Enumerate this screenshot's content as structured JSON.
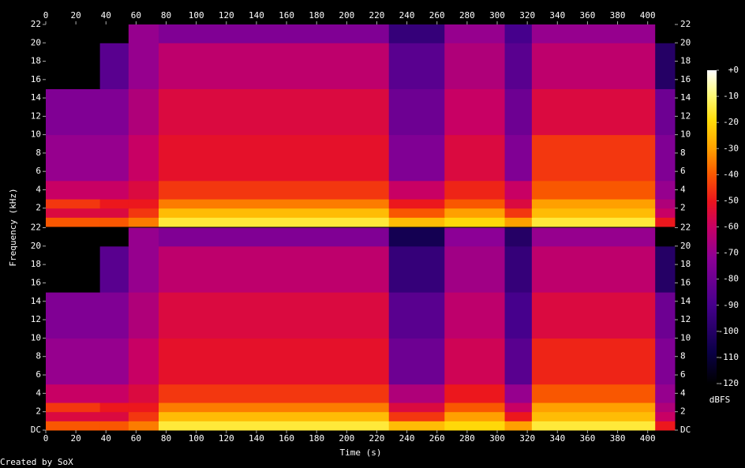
{
  "chart_data": {
    "type": "heatmap",
    "xlabel": "Time (s)",
    "ylabel": "Frequency (kHz)",
    "xlim": [
      0,
      418
    ],
    "xticks": [
      0,
      20,
      40,
      60,
      80,
      100,
      120,
      140,
      160,
      180,
      200,
      220,
      240,
      260,
      280,
      300,
      320,
      340,
      360,
      380,
      400
    ],
    "ylim": [
      0,
      22
    ],
    "x_bins": [
      0,
      36,
      55,
      75,
      228,
      265,
      305,
      323,
      405,
      418
    ],
    "y_bins": [
      0,
      1,
      2,
      3,
      5,
      10,
      15,
      20,
      22
    ],
    "channels": [
      {
        "yticks": [
          2,
          4,
          6,
          8,
          10,
          12,
          14,
          16,
          18,
          20,
          22
        ],
        "values": [
          [
            -40,
            -40,
            -35,
            -15,
            -25,
            -20,
            -30,
            -15,
            -50
          ],
          [
            -55,
            -55,
            -45,
            -25,
            -40,
            -30,
            -45,
            -25,
            -60
          ],
          [
            -45,
            -50,
            -50,
            -35,
            -50,
            -40,
            -55,
            -30,
            -65
          ],
          [
            -60,
            -60,
            -55,
            -45,
            -60,
            -48,
            -60,
            -40,
            -70
          ],
          [
            -70,
            -70,
            -60,
            -52,
            -75,
            -55,
            -75,
            -45,
            -75
          ],
          [
            -75,
            -75,
            -65,
            -55,
            -80,
            -60,
            -80,
            -55,
            -80
          ],
          [
            -120,
            -85,
            -70,
            -62,
            -85,
            -65,
            -85,
            -62,
            -100
          ],
          [
            -120,
            -120,
            -70,
            -75,
            -95,
            -70,
            -90,
            -70,
            -120
          ]
        ]
      },
      {
        "yticks": [
          {
            "value": 0,
            "label": "DC"
          },
          2,
          4,
          6,
          8,
          10,
          12,
          14,
          16,
          18,
          20,
          22
        ],
        "values": [
          [
            -40,
            -40,
            -35,
            -15,
            -25,
            -20,
            -30,
            -15,
            -50
          ],
          [
            -55,
            -55,
            -45,
            -25,
            -45,
            -30,
            -50,
            -25,
            -60
          ],
          [
            -45,
            -50,
            -50,
            -35,
            -55,
            -40,
            -60,
            -30,
            -65
          ],
          [
            -60,
            -60,
            -55,
            -45,
            -65,
            -50,
            -70,
            -40,
            -70
          ],
          [
            -70,
            -70,
            -60,
            -52,
            -80,
            -58,
            -85,
            -48,
            -75
          ],
          [
            -75,
            -75,
            -65,
            -55,
            -85,
            -62,
            -90,
            -55,
            -80
          ],
          [
            -120,
            -85,
            -70,
            -62,
            -95,
            -68,
            -95,
            -62,
            -100
          ],
          [
            -120,
            -120,
            -70,
            -75,
            -105,
            -72,
            -100,
            -70,
            -120
          ]
        ]
      }
    ],
    "colorbar": {
      "label": "dBFS",
      "lim": [
        -120,
        0
      ],
      "ticks": [
        -120,
        -110,
        -100,
        -90,
        -80,
        -70,
        -60,
        -50,
        -40,
        -30,
        -20,
        -10,
        {
          "value": 0,
          "label": "+0"
        }
      ]
    },
    "footer": "Created by SoX"
  }
}
